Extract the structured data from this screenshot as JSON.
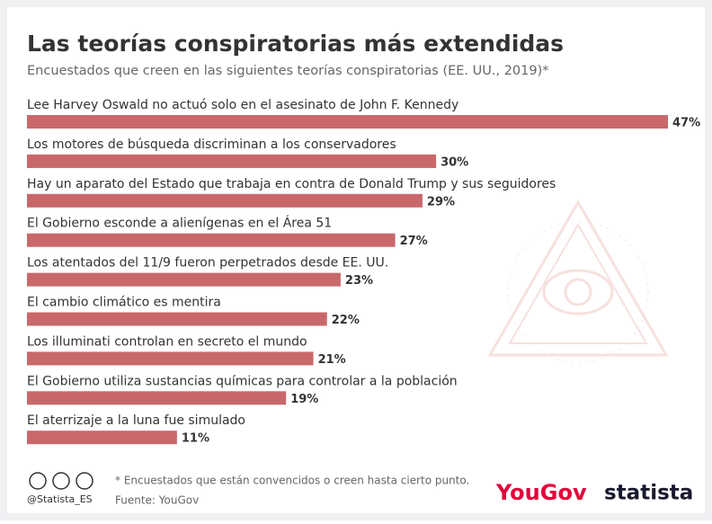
{
  "chart_data": {
    "type": "bar",
    "orientation": "horizontal",
    "title": "Las teorías conspiratorias más extendidas",
    "subtitle": "Encuestados que creen en las siguientes teorías conspiratorias (EE. UU., 2019)*",
    "categories": [
      "Lee Harvey Oswald no actuó solo en el asesinato de John F. Kennedy",
      "Los motores de búsqueda discriminan a los conservadores",
      "Hay un aparato del Estado que trabaja en contra de Donald Trump y sus seguidores",
      "El Gobierno esconde a alienígenas en el Área 51",
      "Los atentados del 11/9 fueron perpetrados desde EE. UU.",
      "El cambio climático es mentira",
      "Los illuminati controlan en secreto el mundo",
      "El Gobierno utiliza sustancias químicas para controlar a la población",
      "El aterrizaje a la luna fue simulado"
    ],
    "values": [
      47,
      30,
      29,
      27,
      23,
      22,
      21,
      19,
      11
    ],
    "value_labels": [
      "47%",
      "30%",
      "29%",
      "27%",
      "23%",
      "22%",
      "21%",
      "19%",
      "11%"
    ],
    "color": "#c9686b",
    "footnote": "* Encuestados que están convencidos o creen hasta cierto punto.",
    "source": "Fuente: YouGov",
    "handle": "@Statista_ES",
    "logos": [
      "YouGov",
      "statista"
    ]
  }
}
